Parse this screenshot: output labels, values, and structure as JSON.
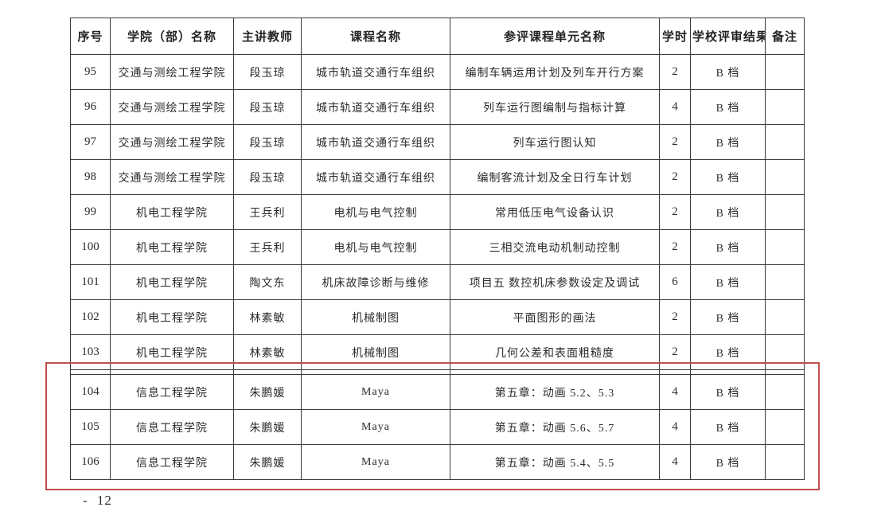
{
  "table": {
    "headers": [
      "序号",
      "学院（部）名称",
      "主讲教师",
      "课程名称",
      "参评课程单元名称",
      "学时",
      "学校评审结果",
      "备注"
    ],
    "rows": [
      {
        "no": "95",
        "college": "交通与测绘工程学院",
        "teacher": "段玉琼",
        "course": "城市轨道交通行车组织",
        "unit": "编制车辆运用计划及列车开行方案",
        "hours": "2",
        "result": "B 档",
        "note": ""
      },
      {
        "no": "96",
        "college": "交通与测绘工程学院",
        "teacher": "段玉琼",
        "course": "城市轨道交通行车组织",
        "unit": "列车运行图编制与指标计算",
        "hours": "4",
        "result": "B 档",
        "note": ""
      },
      {
        "no": "97",
        "college": "交通与测绘工程学院",
        "teacher": "段玉琼",
        "course": "城市轨道交通行车组织",
        "unit": "列车运行图认知",
        "hours": "2",
        "result": "B 档",
        "note": ""
      },
      {
        "no": "98",
        "college": "交通与测绘工程学院",
        "teacher": "段玉琼",
        "course": "城市轨道交通行车组织",
        "unit": "编制客流计划及全日行车计划",
        "hours": "2",
        "result": "B 档",
        "note": ""
      },
      {
        "no": "99",
        "college": "机电工程学院",
        "teacher": "王兵利",
        "course": "电机与电气控制",
        "unit": "常用低压电气设备认识",
        "hours": "2",
        "result": "B 档",
        "note": ""
      },
      {
        "no": "100",
        "college": "机电工程学院",
        "teacher": "王兵利",
        "course": "电机与电气控制",
        "unit": "三相交流电动机制动控制",
        "hours": "2",
        "result": "B 档",
        "note": ""
      },
      {
        "no": "101",
        "college": "机电工程学院",
        "teacher": "陶文东",
        "course": "机床故障诊断与维修",
        "unit": "项目五 数控机床参数设定及调试",
        "hours": "6",
        "result": "B 档",
        "note": ""
      },
      {
        "no": "102",
        "college": "机电工程学院",
        "teacher": "林素敏",
        "course": "机械制图",
        "unit": "平面图形的画法",
        "hours": "2",
        "result": "B 档",
        "note": ""
      },
      {
        "no": "103",
        "college": "机电工程学院",
        "teacher": "林素敏",
        "course": "机械制图",
        "unit": "几何公差和表面粗糙度",
        "hours": "2",
        "result": "B 档",
        "note": ""
      },
      {
        "no": "104",
        "college": "信息工程学院",
        "teacher": "朱鹏媛",
        "course": "Maya",
        "unit": "第五章：动画 5.2、5.3",
        "hours": "4",
        "result": "B 档",
        "note": "",
        "spacer_before": true
      },
      {
        "no": "105",
        "college": "信息工程学院",
        "teacher": "朱鹏媛",
        "course": "Maya",
        "unit": "第五章：动画 5.6、5.7",
        "hours": "4",
        "result": "B 档",
        "note": ""
      },
      {
        "no": "106",
        "college": "信息工程学院",
        "teacher": "朱鹏媛",
        "course": "Maya",
        "unit": "第五章：动画 5.4、5.5",
        "hours": "4",
        "result": "B 档",
        "note": ""
      }
    ]
  },
  "annotation": {
    "highlight_color": "#c0504d",
    "highlighted_rows": [
      "104",
      "105",
      "106"
    ]
  },
  "page": {
    "number_label": "- 12"
  }
}
